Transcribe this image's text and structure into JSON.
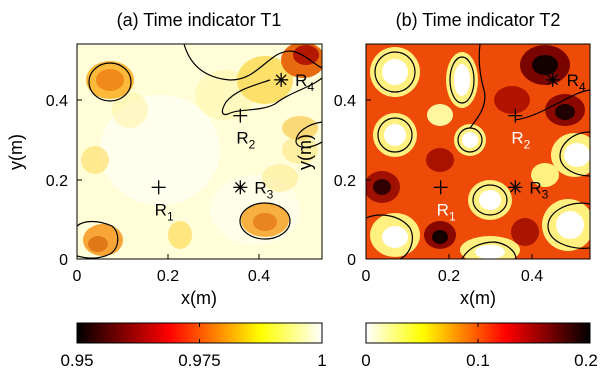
{
  "chart_data": [
    {
      "type": "heatmap",
      "title": "(a) Time indicator T1",
      "xlabel": "x(m)",
      "ylabel": "y(m)",
      "xlim": [
        0,
        0.54
      ],
      "ylim": [
        0,
        0.54
      ],
      "xticks": [
        0,
        0.2,
        0.4
      ],
      "yticks": [
        0,
        0.2,
        0.4
      ],
      "xtick_labels": [
        "0",
        "0.2",
        "0.4"
      ],
      "ytick_labels": [
        "0",
        "0.2",
        "0.4"
      ],
      "colormap": "hot",
      "colorbar": {
        "range": [
          0.95,
          1
        ],
        "ticks": [
          0.95,
          0.975,
          1
        ],
        "tick_labels": [
          "0.95",
          "0.975",
          "1"
        ],
        "orientation": "horizontal",
        "reversed": false
      },
      "markers": [
        {
          "label": "R",
          "sub": "1",
          "symbol": "+",
          "x": 0.18,
          "y": 0.18,
          "text_color": "#000000"
        },
        {
          "label": "R",
          "sub": "2",
          "symbol": "+",
          "x": 0.36,
          "y": 0.36,
          "text_color": "#000000"
        },
        {
          "label": "R",
          "sub": "3",
          "symbol": "*",
          "x": 0.36,
          "y": 0.18,
          "text_color": "#000000"
        },
        {
          "label": "R",
          "sub": "4",
          "symbol": "*",
          "x": 0.45,
          "y": 0.45,
          "text_color": "#000000"
        }
      ]
    },
    {
      "type": "heatmap",
      "title": "(b) Time indicator T2",
      "xlabel": "x(m)",
      "ylabel": "y(m)",
      "xlim": [
        0,
        0.54
      ],
      "ylim": [
        0,
        0.54
      ],
      "xticks": [
        0,
        0.2,
        0.4
      ],
      "yticks": [
        0,
        0.2,
        0.4
      ],
      "xtick_labels": [
        "0",
        "0.2",
        "0.4"
      ],
      "ytick_labels": [
        "0",
        "0.2",
        "0.4"
      ],
      "colormap": "hot_reversed",
      "colorbar": {
        "range": [
          0,
          0.2
        ],
        "ticks": [
          0,
          0.1,
          0.2
        ],
        "tick_labels": [
          "0",
          "0.1",
          "0.2"
        ],
        "orientation": "horizontal",
        "reversed": true
      },
      "markers": [
        {
          "label": "R",
          "sub": "1",
          "symbol": "+",
          "x": 0.18,
          "y": 0.18,
          "text_color": "#ffffff"
        },
        {
          "label": "R",
          "sub": "2",
          "symbol": "+",
          "x": 0.36,
          "y": 0.36,
          "text_color": "#ffffff"
        },
        {
          "label": "R",
          "sub": "3",
          "symbol": "*",
          "x": 0.36,
          "y": 0.18,
          "text_color": "#000000"
        },
        {
          "label": "R",
          "sub": "4",
          "symbol": "*",
          "x": 0.45,
          "y": 0.45,
          "text_color": "#000000"
        }
      ]
    }
  ]
}
